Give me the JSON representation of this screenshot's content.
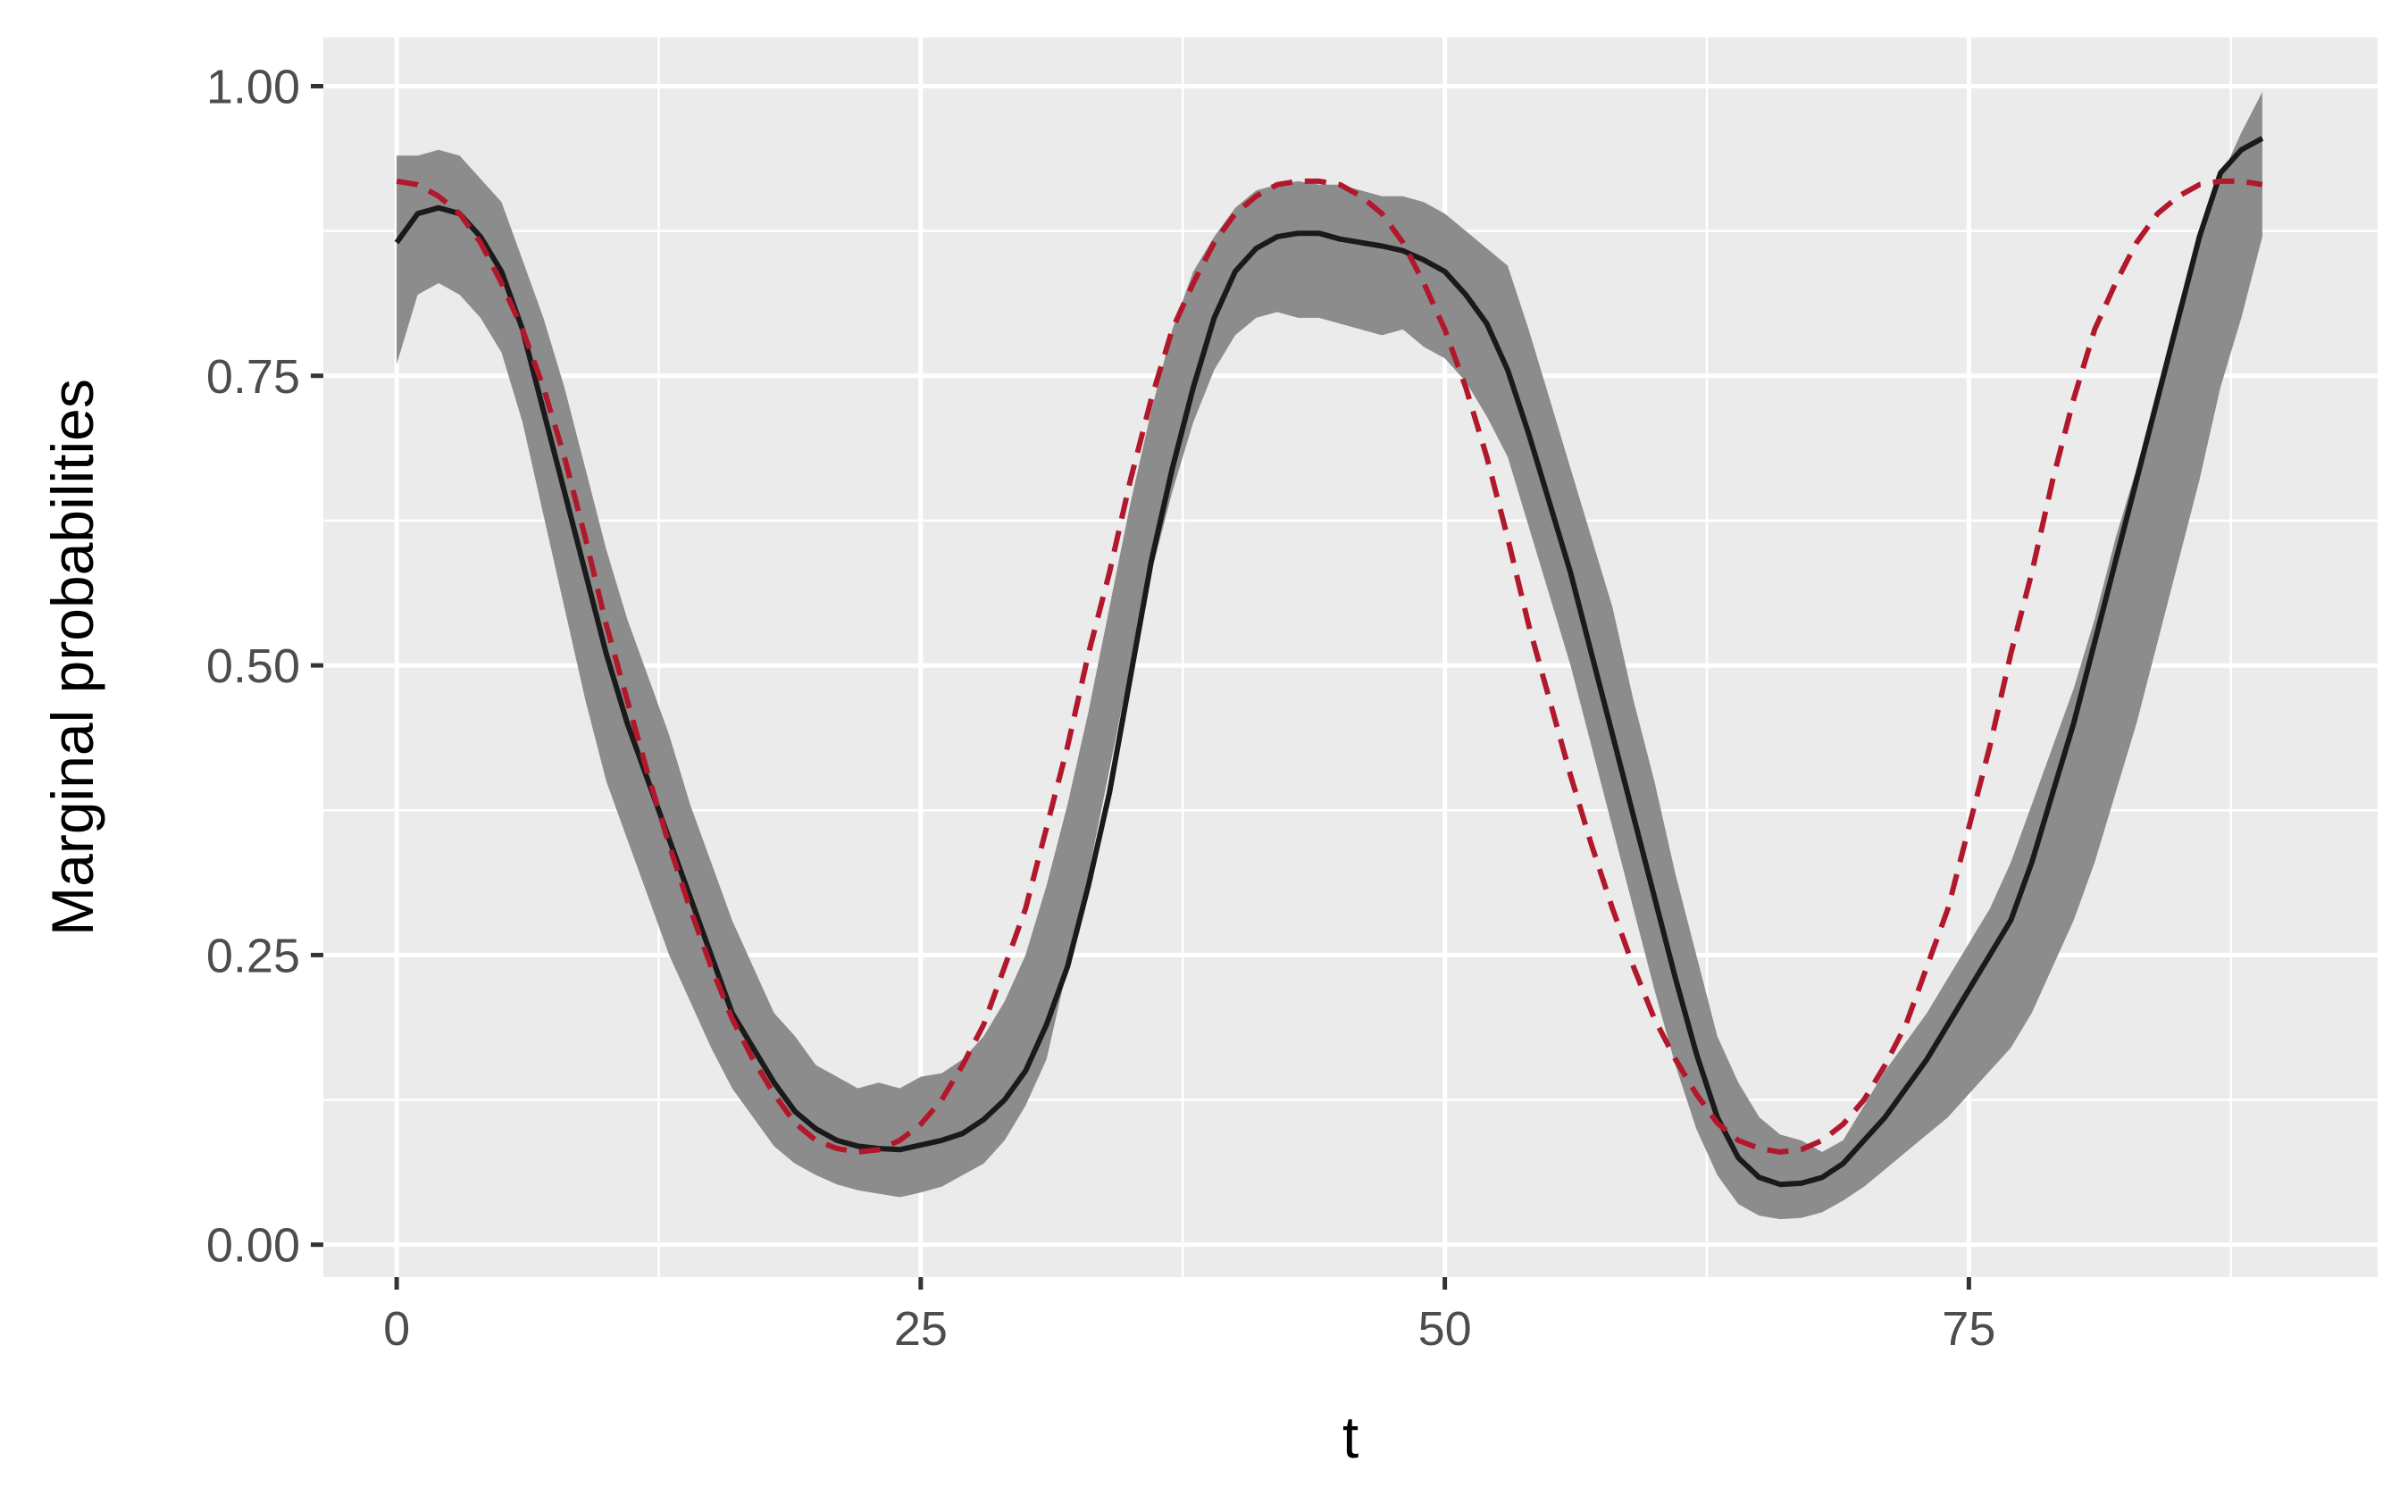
{
  "chart_data": {
    "type": "line",
    "title": "",
    "xlabel": "t",
    "ylabel": "Marginal probabilities",
    "xlim": [
      -3.5,
      94.5
    ],
    "ylim": [
      -0.028,
      1.042
    ],
    "x_ticks": [
      0,
      25,
      50,
      75
    ],
    "x_tick_labels": [
      "0",
      "25",
      "50",
      "75"
    ],
    "x_minor_ticks": [
      12.5,
      37.5,
      62.5,
      87.5
    ],
    "y_ticks": [
      0,
      0.25,
      0.5,
      0.75,
      1.0
    ],
    "y_tick_labels": [
      "0.00",
      "0.25",
      "0.50",
      "0.75",
      "1.00"
    ],
    "y_minor_ticks": [
      0.125,
      0.375,
      0.625,
      0.875
    ],
    "grid": true,
    "legend": "none",
    "colors": {
      "panel_background": "#ebebeb",
      "grid": "#ffffff",
      "ribbon": "#8c8c8c",
      "estimate_line": "#1a1a1a",
      "true_line": "#b2182b"
    },
    "series": [
      {
        "kind": "ribbon",
        "x": [
          0,
          1,
          2,
          3,
          4,
          5,
          6,
          7,
          8,
          9,
          10,
          11,
          12,
          13,
          14,
          15,
          16,
          17,
          18,
          19,
          20,
          21,
          22,
          23,
          24,
          25,
          26,
          27,
          28,
          29,
          30,
          31,
          32,
          33,
          34,
          35,
          36,
          37,
          38,
          39,
          40,
          41,
          42,
          43,
          44,
          45,
          46,
          47,
          48,
          49,
          50,
          51,
          52,
          53,
          54,
          55,
          56,
          57,
          58,
          59,
          60,
          61,
          62,
          63,
          64,
          65,
          66,
          67,
          68,
          69,
          70,
          71,
          72,
          73,
          74,
          75,
          76,
          77,
          78,
          79,
          80,
          81,
          82,
          83,
          84,
          85,
          86,
          87,
          88,
          89
        ],
        "lower": [
          0.76,
          0.82,
          0.83,
          0.82,
          0.8,
          0.77,
          0.71,
          0.63,
          0.55,
          0.47,
          0.4,
          0.35,
          0.3,
          0.25,
          0.21,
          0.17,
          0.135,
          0.11,
          0.085,
          0.07,
          0.06,
          0.052,
          0.047,
          0.044,
          0.041,
          0.045,
          0.05,
          0.06,
          0.07,
          0.09,
          0.12,
          0.16,
          0.24,
          0.32,
          0.41,
          0.5,
          0.58,
          0.65,
          0.71,
          0.755,
          0.785,
          0.8,
          0.805,
          0.8,
          0.8,
          0.795,
          0.79,
          0.785,
          0.79,
          0.775,
          0.765,
          0.745,
          0.715,
          0.68,
          0.62,
          0.56,
          0.5,
          0.43,
          0.36,
          0.29,
          0.22,
          0.155,
          0.1,
          0.06,
          0.035,
          0.025,
          0.022,
          0.023,
          0.028,
          0.038,
          0.05,
          0.065,
          0.08,
          0.095,
          0.11,
          0.13,
          0.15,
          0.17,
          0.2,
          0.24,
          0.28,
          0.33,
          0.39,
          0.45,
          0.52,
          0.59,
          0.66,
          0.74,
          0.8,
          0.87
        ],
        "upper": [
          0.94,
          0.94,
          0.945,
          0.94,
          0.92,
          0.9,
          0.85,
          0.8,
          0.74,
          0.67,
          0.6,
          0.54,
          0.49,
          0.44,
          0.38,
          0.33,
          0.28,
          0.24,
          0.2,
          0.18,
          0.155,
          0.145,
          0.135,
          0.14,
          0.135,
          0.145,
          0.148,
          0.16,
          0.18,
          0.21,
          0.25,
          0.31,
          0.38,
          0.46,
          0.55,
          0.64,
          0.72,
          0.79,
          0.84,
          0.87,
          0.895,
          0.91,
          0.915,
          0.918,
          0.915,
          0.915,
          0.91,
          0.905,
          0.905,
          0.9,
          0.89,
          0.875,
          0.86,
          0.845,
          0.79,
          0.73,
          0.67,
          0.61,
          0.55,
          0.47,
          0.4,
          0.32,
          0.25,
          0.18,
          0.14,
          0.11,
          0.095,
          0.09,
          0.08,
          0.09,
          0.12,
          0.15,
          0.175,
          0.2,
          0.23,
          0.26,
          0.29,
          0.33,
          0.38,
          0.43,
          0.48,
          0.54,
          0.61,
          0.67,
          0.74,
          0.81,
          0.87,
          0.92,
          0.96,
          0.995
        ]
      },
      {
        "kind": "line",
        "style": "solid",
        "x": [
          0,
          1,
          2,
          3,
          4,
          5,
          6,
          7,
          8,
          9,
          10,
          11,
          12,
          13,
          14,
          15,
          16,
          17,
          18,
          19,
          20,
          21,
          22,
          23,
          24,
          25,
          26,
          27,
          28,
          29,
          30,
          31,
          32,
          33,
          34,
          35,
          36,
          37,
          38,
          39,
          40,
          41,
          42,
          43,
          44,
          45,
          46,
          47,
          48,
          49,
          50,
          51,
          52,
          53,
          54,
          55,
          56,
          57,
          58,
          59,
          60,
          61,
          62,
          63,
          64,
          65,
          66,
          67,
          68,
          69,
          70,
          71,
          72,
          73,
          74,
          75,
          76,
          77,
          78,
          79,
          80,
          81,
          82,
          83,
          84,
          85,
          86,
          87,
          88,
          89
        ],
        "values": [
          0.865,
          0.89,
          0.895,
          0.89,
          0.87,
          0.84,
          0.79,
          0.72,
          0.65,
          0.58,
          0.51,
          0.45,
          0.4,
          0.35,
          0.3,
          0.25,
          0.2,
          0.17,
          0.14,
          0.115,
          0.1,
          0.09,
          0.085,
          0.083,
          0.082,
          0.086,
          0.09,
          0.096,
          0.108,
          0.125,
          0.15,
          0.19,
          0.24,
          0.31,
          0.39,
          0.49,
          0.59,
          0.67,
          0.74,
          0.8,
          0.84,
          0.86,
          0.87,
          0.873,
          0.873,
          0.868,
          0.865,
          0.862,
          0.858,
          0.85,
          0.84,
          0.82,
          0.795,
          0.755,
          0.7,
          0.64,
          0.58,
          0.51,
          0.44,
          0.37,
          0.3,
          0.23,
          0.165,
          0.11,
          0.075,
          0.058,
          0.052,
          0.053,
          0.058,
          0.07,
          0.09,
          0.11,
          0.135,
          0.16,
          0.19,
          0.22,
          0.25,
          0.28,
          0.33,
          0.39,
          0.45,
          0.52,
          0.59,
          0.66,
          0.73,
          0.8,
          0.87,
          0.925,
          0.945,
          0.955
        ]
      },
      {
        "kind": "line",
        "style": "dashed",
        "x": [
          0,
          1,
          2,
          3,
          4,
          5,
          6,
          7,
          8,
          9,
          10,
          11,
          12,
          13,
          14,
          15,
          16,
          17,
          18,
          19,
          20,
          21,
          22,
          23,
          24,
          25,
          26,
          27,
          28,
          29,
          30,
          31,
          32,
          33,
          34,
          35,
          36,
          37,
          38,
          39,
          40,
          41,
          42,
          43,
          44,
          45,
          46,
          47,
          48,
          49,
          50,
          51,
          52,
          53,
          54,
          55,
          56,
          57,
          58,
          59,
          60,
          61,
          62,
          63,
          64,
          65,
          66,
          67,
          68,
          69,
          70,
          71,
          72,
          73,
          74,
          75,
          76,
          77,
          78,
          79,
          80,
          81,
          82,
          83,
          84,
          85,
          86,
          87,
          88,
          89
        ],
        "values": [
          0.918,
          0.915,
          0.905,
          0.89,
          0.865,
          0.83,
          0.79,
          0.74,
          0.68,
          0.61,
          0.535,
          0.47,
          0.405,
          0.345,
          0.29,
          0.24,
          0.195,
          0.16,
          0.13,
          0.105,
          0.09,
          0.083,
          0.08,
          0.082,
          0.09,
          0.104,
          0.125,
          0.155,
          0.19,
          0.24,
          0.29,
          0.36,
          0.43,
          0.51,
          0.58,
          0.66,
          0.73,
          0.79,
          0.83,
          0.865,
          0.89,
          0.905,
          0.915,
          0.918,
          0.918,
          0.915,
          0.905,
          0.89,
          0.865,
          0.83,
          0.79,
          0.74,
          0.68,
          0.61,
          0.535,
          0.47,
          0.405,
          0.345,
          0.29,
          0.24,
          0.195,
          0.16,
          0.13,
          0.105,
          0.09,
          0.083,
          0.08,
          0.082,
          0.09,
          0.104,
          0.125,
          0.155,
          0.19,
          0.24,
          0.29,
          0.36,
          0.43,
          0.51,
          0.58,
          0.66,
          0.73,
          0.79,
          0.83,
          0.865,
          0.89,
          0.905,
          0.915,
          0.918,
          0.918,
          0.915
        ]
      }
    ]
  }
}
